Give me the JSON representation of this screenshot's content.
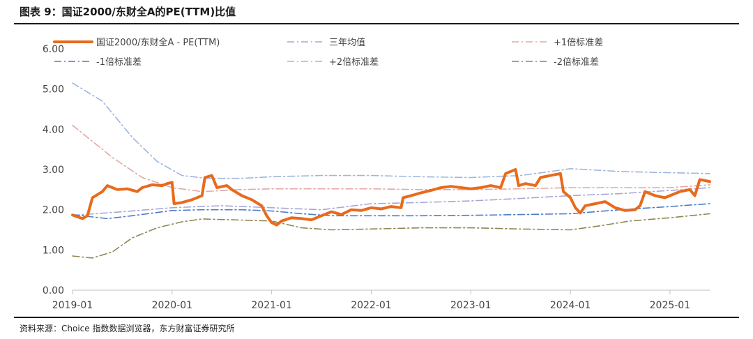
{
  "header": {
    "title": "图表 9：国证2000/东财全A的PE(TTM)比值"
  },
  "footer": {
    "source": "资料来源：Choice 指数数据浏览器，东方财富证券研究所"
  },
  "colors": {
    "main": "#E86A1C",
    "mean": "#A9A6D6",
    "plus1": "#E3A8A6",
    "minus1": "#4E7CC7",
    "plus2": "#9FB6DE",
    "minus2": "#8F8754"
  },
  "chart_data": {
    "type": "line",
    "title": "",
    "xlabel": "",
    "ylabel": "",
    "ylim": [
      0,
      6
    ],
    "y_ticks": [
      "0.00",
      "1.00",
      "2.00",
      "3.00",
      "4.00",
      "5.00",
      "6.00"
    ],
    "x_ticks": [
      "2019-01",
      "2020-01",
      "2021-01",
      "2022-01",
      "2023-01",
      "2024-01",
      "2025-01"
    ],
    "legend_position": "top",
    "series": [
      {
        "name": "国证2000/东财全A - PE(TTM)",
        "style": "solid",
        "color_key": "main",
        "points": [
          [
            2019.0,
            1.87
          ],
          [
            2019.1,
            1.78
          ],
          [
            2019.15,
            1.85
          ],
          [
            2019.2,
            2.3
          ],
          [
            2019.3,
            2.45
          ],
          [
            2019.35,
            2.6
          ],
          [
            2019.45,
            2.5
          ],
          [
            2019.55,
            2.52
          ],
          [
            2019.65,
            2.45
          ],
          [
            2019.7,
            2.55
          ],
          [
            2019.8,
            2.62
          ],
          [
            2019.9,
            2.6
          ],
          [
            2019.95,
            2.65
          ],
          [
            2020.0,
            2.68
          ],
          [
            2020.02,
            2.15
          ],
          [
            2020.1,
            2.18
          ],
          [
            2020.2,
            2.25
          ],
          [
            2020.3,
            2.35
          ],
          [
            2020.33,
            2.8
          ],
          [
            2020.4,
            2.85
          ],
          [
            2020.45,
            2.55
          ],
          [
            2020.55,
            2.6
          ],
          [
            2020.6,
            2.5
          ],
          [
            2020.7,
            2.35
          ],
          [
            2020.8,
            2.25
          ],
          [
            2020.9,
            2.1
          ],
          [
            2020.95,
            1.85
          ],
          [
            2021.0,
            1.68
          ],
          [
            2021.05,
            1.62
          ],
          [
            2021.1,
            1.72
          ],
          [
            2021.2,
            1.8
          ],
          [
            2021.3,
            1.78
          ],
          [
            2021.4,
            1.75
          ],
          [
            2021.5,
            1.85
          ],
          [
            2021.6,
            1.95
          ],
          [
            2021.7,
            1.88
          ],
          [
            2021.8,
            2.0
          ],
          [
            2021.9,
            1.98
          ],
          [
            2022.0,
            2.05
          ],
          [
            2022.1,
            2.02
          ],
          [
            2022.2,
            2.08
          ],
          [
            2022.3,
            2.05
          ],
          [
            2022.32,
            2.3
          ],
          [
            2022.4,
            2.35
          ],
          [
            2022.5,
            2.42
          ],
          [
            2022.6,
            2.48
          ],
          [
            2022.7,
            2.55
          ],
          [
            2022.8,
            2.58
          ],
          [
            2022.9,
            2.55
          ],
          [
            2023.0,
            2.52
          ],
          [
            2023.1,
            2.55
          ],
          [
            2023.2,
            2.6
          ],
          [
            2023.3,
            2.55
          ],
          [
            2023.35,
            2.9
          ],
          [
            2023.45,
            3.0
          ],
          [
            2023.48,
            2.6
          ],
          [
            2023.55,
            2.65
          ],
          [
            2023.65,
            2.6
          ],
          [
            2023.7,
            2.8
          ],
          [
            2023.8,
            2.85
          ],
          [
            2023.9,
            2.9
          ],
          [
            2023.93,
            2.45
          ],
          [
            2024.0,
            2.3
          ],
          [
            2024.05,
            2.05
          ],
          [
            2024.1,
            1.92
          ],
          [
            2024.15,
            2.1
          ],
          [
            2024.25,
            2.15
          ],
          [
            2024.35,
            2.2
          ],
          [
            2024.45,
            2.05
          ],
          [
            2024.55,
            1.98
          ],
          [
            2024.65,
            2.0
          ],
          [
            2024.7,
            2.1
          ],
          [
            2024.75,
            2.45
          ],
          [
            2024.85,
            2.35
          ],
          [
            2024.95,
            2.3
          ],
          [
            2025.0,
            2.35
          ],
          [
            2025.1,
            2.45
          ],
          [
            2025.2,
            2.5
          ],
          [
            2025.25,
            2.35
          ],
          [
            2025.3,
            2.75
          ],
          [
            2025.4,
            2.7
          ]
        ]
      },
      {
        "name": "三年均值",
        "style": "dashdot",
        "color_key": "mean",
        "points": [
          [
            2019.0,
            1.86
          ],
          [
            2019.5,
            1.95
          ],
          [
            2020.0,
            2.05
          ],
          [
            2020.5,
            2.1
          ],
          [
            2021.0,
            2.05
          ],
          [
            2021.5,
            2.0
          ],
          [
            2022.0,
            2.15
          ],
          [
            2022.5,
            2.18
          ],
          [
            2023.0,
            2.22
          ],
          [
            2023.5,
            2.28
          ],
          [
            2024.0,
            2.35
          ],
          [
            2024.5,
            2.4
          ],
          [
            2025.0,
            2.48
          ],
          [
            2025.4,
            2.55
          ]
        ]
      },
      {
        "name": "+1倍标准差",
        "style": "dashdot",
        "color_key": "plus1",
        "points": [
          [
            2019.0,
            4.1
          ],
          [
            2019.4,
            3.3
          ],
          [
            2019.7,
            2.8
          ],
          [
            2020.0,
            2.55
          ],
          [
            2020.3,
            2.45
          ],
          [
            2020.7,
            2.5
          ],
          [
            2021.0,
            2.52
          ],
          [
            2021.5,
            2.52
          ],
          [
            2022.0,
            2.52
          ],
          [
            2022.5,
            2.5
          ],
          [
            2023.0,
            2.5
          ],
          [
            2023.5,
            2.52
          ],
          [
            2024.0,
            2.55
          ],
          [
            2024.5,
            2.55
          ],
          [
            2025.0,
            2.55
          ],
          [
            2025.4,
            2.62
          ]
        ]
      },
      {
        "name": "-1倍标准差",
        "style": "dashdot",
        "color_key": "minus1",
        "points": [
          [
            2019.0,
            1.88
          ],
          [
            2019.2,
            1.82
          ],
          [
            2019.35,
            1.78
          ],
          [
            2019.6,
            1.85
          ],
          [
            2020.0,
            1.98
          ],
          [
            2020.3,
            2.0
          ],
          [
            2020.7,
            2.0
          ],
          [
            2021.0,
            1.97
          ],
          [
            2021.3,
            1.9
          ],
          [
            2021.6,
            1.85
          ],
          [
            2022.0,
            1.85
          ],
          [
            2022.5,
            1.85
          ],
          [
            2023.0,
            1.86
          ],
          [
            2023.5,
            1.88
          ],
          [
            2024.0,
            1.9
          ],
          [
            2024.5,
            2.0
          ],
          [
            2025.0,
            2.08
          ],
          [
            2025.4,
            2.15
          ]
        ]
      },
      {
        "name": "+2倍标准差",
        "style": "dashdot",
        "color_key": "plus2",
        "points": [
          [
            2019.0,
            5.15
          ],
          [
            2019.3,
            4.7
          ],
          [
            2019.6,
            3.8
          ],
          [
            2019.85,
            3.2
          ],
          [
            2020.1,
            2.85
          ],
          [
            2020.35,
            2.78
          ],
          [
            2020.7,
            2.78
          ],
          [
            2021.0,
            2.82
          ],
          [
            2021.5,
            2.85
          ],
          [
            2022.0,
            2.85
          ],
          [
            2022.5,
            2.82
          ],
          [
            2023.0,
            2.8
          ],
          [
            2023.5,
            2.85
          ],
          [
            2023.8,
            2.95
          ],
          [
            2024.0,
            3.02
          ],
          [
            2024.5,
            2.95
          ],
          [
            2025.0,
            2.92
          ],
          [
            2025.4,
            2.9
          ]
        ]
      },
      {
        "name": "-2倍标准差",
        "style": "dashdot",
        "color_key": "minus2",
        "points": [
          [
            2019.0,
            0.85
          ],
          [
            2019.2,
            0.8
          ],
          [
            2019.4,
            0.95
          ],
          [
            2019.6,
            1.3
          ],
          [
            2019.85,
            1.55
          ],
          [
            2020.1,
            1.7
          ],
          [
            2020.3,
            1.77
          ],
          [
            2020.6,
            1.75
          ],
          [
            2021.0,
            1.72
          ],
          [
            2021.3,
            1.55
          ],
          [
            2021.6,
            1.5
          ],
          [
            2022.0,
            1.52
          ],
          [
            2022.5,
            1.55
          ],
          [
            2023.0,
            1.55
          ],
          [
            2023.5,
            1.52
          ],
          [
            2024.0,
            1.5
          ],
          [
            2024.3,
            1.6
          ],
          [
            2024.6,
            1.72
          ],
          [
            2025.0,
            1.8
          ],
          [
            2025.4,
            1.9
          ]
        ]
      }
    ]
  }
}
